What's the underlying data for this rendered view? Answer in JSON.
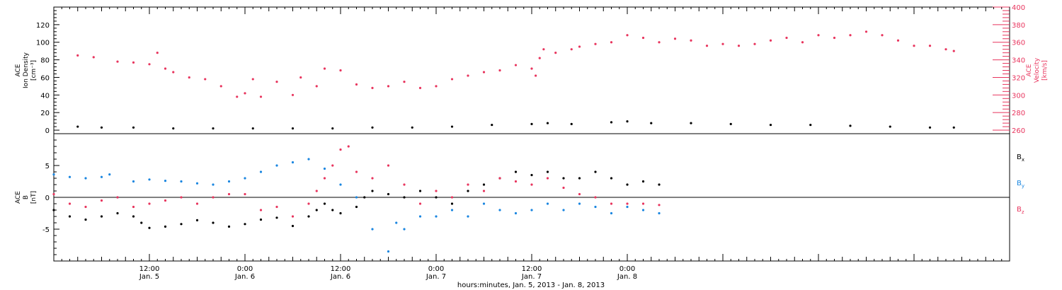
{
  "chart_data": [
    {
      "type": "scatter",
      "panel": "top",
      "left_axis": {
        "label_lines": [
          "ACE",
          "Ion Density",
          "[cm⁻³]"
        ],
        "ticks": [
          0,
          20,
          40,
          60,
          80,
          100,
          120
        ],
        "ylim": [
          -4,
          140
        ],
        "color": "#000000"
      },
      "right_axis": {
        "label_lines": [
          "ACE",
          "Velocity",
          "[km/s]"
        ],
        "ticks": [
          260,
          280,
          300,
          320,
          340,
          360,
          380,
          400
        ],
        "ylim": [
          256,
          400
        ],
        "color": "#e8355e"
      },
      "series": [
        {
          "axis": "right",
          "color": "#e8355e",
          "points": [
            [
              3,
              345
            ],
            [
              5,
              343
            ],
            [
              8,
              338
            ],
            [
              10,
              337
            ],
            [
              12,
              335
            ],
            [
              13,
              348
            ],
            [
              14,
              330
            ],
            [
              15,
              326
            ],
            [
              17,
              320
            ],
            [
              19,
              318
            ],
            [
              21,
              310
            ],
            [
              23,
              298
            ],
            [
              24,
              302
            ],
            [
              25,
              318
            ],
            [
              26,
              298
            ],
            [
              28,
              315
            ],
            [
              30,
              300
            ],
            [
              31,
              320
            ],
            [
              33,
              310
            ],
            [
              34,
              330
            ],
            [
              36,
              328
            ],
            [
              38,
              312
            ],
            [
              40,
              308
            ],
            [
              42,
              310
            ],
            [
              44,
              315
            ],
            [
              46,
              308
            ],
            [
              48,
              310
            ],
            [
              50,
              318
            ],
            [
              52,
              322
            ],
            [
              54,
              326
            ],
            [
              56,
              328
            ],
            [
              58,
              334
            ],
            [
              60,
              330
            ],
            [
              60.5,
              322
            ],
            [
              61,
              342
            ],
            [
              61.5,
              352
            ],
            [
              63,
              348
            ],
            [
              65,
              352
            ],
            [
              66,
              355
            ],
            [
              68,
              358
            ],
            [
              70,
              360
            ],
            [
              72,
              368
            ],
            [
              74,
              365
            ],
            [
              76,
              360
            ],
            [
              78,
              364
            ],
            [
              80,
              362
            ],
            [
              82,
              356
            ],
            [
              84,
              358
            ],
            [
              86,
              356
            ],
            [
              88,
              358
            ],
            [
              90,
              362
            ],
            [
              92,
              365
            ],
            [
              94,
              360
            ],
            [
              96,
              368
            ],
            [
              98,
              365
            ],
            [
              100,
              368
            ],
            [
              102,
              372
            ],
            [
              104,
              368
            ],
            [
              106,
              362
            ],
            [
              108,
              356
            ],
            [
              110,
              356
            ],
            [
              112,
              352
            ],
            [
              113,
              350
            ]
          ]
        },
        {
          "axis": "left",
          "color": "#000000",
          "points": [
            [
              3,
              4
            ],
            [
              6,
              3
            ],
            [
              10,
              3
            ],
            [
              15,
              2
            ],
            [
              20,
              2
            ],
            [
              25,
              2
            ],
            [
              30,
              2
            ],
            [
              35,
              2
            ],
            [
              40,
              3
            ],
            [
              45,
              3
            ],
            [
              50,
              4
            ],
            [
              55,
              6
            ],
            [
              60,
              7
            ],
            [
              62,
              8
            ],
            [
              65,
              7
            ],
            [
              70,
              9
            ],
            [
              72,
              10
            ],
            [
              75,
              8
            ],
            [
              80,
              8
            ],
            [
              85,
              7
            ],
            [
              90,
              6
            ],
            [
              95,
              6
            ],
            [
              100,
              5
            ],
            [
              105,
              4
            ],
            [
              110,
              3
            ],
            [
              113,
              3
            ]
          ]
        }
      ]
    },
    {
      "type": "scatter",
      "panel": "bottom",
      "left_axis": {
        "label_lines": [
          "ACE",
          "B",
          "[nT]"
        ],
        "ticks": [
          -5,
          0,
          5
        ],
        "ylim": [
          -10,
          10
        ],
        "color": "#000000"
      },
      "xlabel": "hours:minutes, Jan.  5, 2013 - Jan.  8, 2013",
      "xlim": [
        0,
        120
      ],
      "x_ticks": [
        {
          "x": 12,
          "time": "12:00",
          "date": "Jan. 5"
        },
        {
          "x": 24,
          "time": "0:00",
          "date": "Jan. 6"
        },
        {
          "x": 36,
          "time": "12:00",
          "date": "Jan. 6"
        },
        {
          "x": 48,
          "time": "0:00",
          "date": "Jan. 7"
        },
        {
          "x": 60,
          "time": "12:00",
          "date": "Jan. 7"
        },
        {
          "x": 72,
          "time": "0:00",
          "date": "Jan. 8"
        }
      ],
      "series": [
        {
          "name": "Bx",
          "label_main": "B",
          "label_sub": "x",
          "color": "#000000",
          "points": [
            [
              0,
              -2
            ],
            [
              2,
              -3
            ],
            [
              4,
              -3.5
            ],
            [
              6,
              -3
            ],
            [
              8,
              -2.5
            ],
            [
              10,
              -3
            ],
            [
              11,
              -4
            ],
            [
              12,
              -4.8
            ],
            [
              14,
              -4.6
            ],
            [
              16,
              -4.2
            ],
            [
              18,
              -3.6
            ],
            [
              20,
              -4.0
            ],
            [
              22,
              -4.6
            ],
            [
              24,
              -4.2
            ],
            [
              26,
              -3.5
            ],
            [
              28,
              -3.2
            ],
            [
              30,
              -4.5
            ],
            [
              32,
              -3.0
            ],
            [
              33,
              -2.0
            ],
            [
              34,
              -1.0
            ],
            [
              35,
              -2.0
            ],
            [
              36,
              -2.5
            ],
            [
              38,
              -1.5
            ],
            [
              39,
              0
            ],
            [
              40,
              1
            ],
            [
              42,
              0.5
            ],
            [
              44,
              0
            ],
            [
              46,
              1
            ],
            [
              48,
              0
            ],
            [
              50,
              -1
            ],
            [
              52,
              1
            ],
            [
              54,
              2
            ],
            [
              56,
              3
            ],
            [
              58,
              4
            ],
            [
              60,
              3.5
            ],
            [
              62,
              4
            ],
            [
              64,
              3
            ],
            [
              66,
              3
            ],
            [
              68,
              4
            ],
            [
              70,
              3
            ],
            [
              72,
              2
            ],
            [
              74,
              2.5
            ],
            [
              76,
              2
            ]
          ]
        },
        {
          "name": "By",
          "label_main": "B",
          "label_sub": "y",
          "color": "#1a86e0",
          "points": [
            [
              0,
              3.6
            ],
            [
              2,
              3.2
            ],
            [
              4,
              3.0
            ],
            [
              6,
              3.2
            ],
            [
              7,
              3.6
            ],
            [
              8,
              0
            ],
            [
              10,
              2.5
            ],
            [
              12,
              2.8
            ],
            [
              14,
              2.6
            ],
            [
              16,
              2.5
            ],
            [
              18,
              2.2
            ],
            [
              20,
              2.0
            ],
            [
              22,
              2.5
            ],
            [
              24,
              3.0
            ],
            [
              26,
              4.0
            ],
            [
              28,
              5.0
            ],
            [
              30,
              5.5
            ],
            [
              32,
              6.0
            ],
            [
              34,
              4.5
            ],
            [
              36,
              2.0
            ],
            [
              38,
              0
            ],
            [
              40,
              -5
            ],
            [
              42,
              -8.5
            ],
            [
              43,
              -4
            ],
            [
              44,
              -5
            ],
            [
              46,
              -3
            ],
            [
              48,
              -3
            ],
            [
              50,
              -2
            ],
            [
              52,
              -3
            ],
            [
              54,
              -1
            ],
            [
              56,
              -2
            ],
            [
              58,
              -2.5
            ],
            [
              60,
              -2.0
            ],
            [
              62,
              -1.0
            ],
            [
              64,
              -2.0
            ],
            [
              66,
              -1.0
            ],
            [
              68,
              -1.5
            ],
            [
              70,
              -2.5
            ],
            [
              72,
              -1.5
            ],
            [
              74,
              -2
            ],
            [
              76,
              -2.5
            ]
          ]
        },
        {
          "name": "Bz",
          "label_main": "B",
          "label_sub": "z",
          "color": "#e8355e",
          "points": [
            [
              0,
              0.5
            ],
            [
              2,
              -1
            ],
            [
              4,
              -1.5
            ],
            [
              6,
              -0.5
            ],
            [
              8,
              0
            ],
            [
              10,
              -1.5
            ],
            [
              12,
              -1.0
            ],
            [
              14,
              -0.5
            ],
            [
              16,
              0
            ],
            [
              18,
              -1
            ],
            [
              20,
              0
            ],
            [
              22,
              0.5
            ],
            [
              24,
              0.5
            ],
            [
              26,
              -2
            ],
            [
              28,
              -1.5
            ],
            [
              30,
              -3
            ],
            [
              32,
              -1
            ],
            [
              33,
              1
            ],
            [
              34,
              3
            ],
            [
              35,
              5
            ],
            [
              36,
              7.5
            ],
            [
              37,
              8
            ],
            [
              38,
              4
            ],
            [
              40,
              3
            ],
            [
              42,
              5
            ],
            [
              44,
              2
            ],
            [
              46,
              -1
            ],
            [
              48,
              1
            ],
            [
              50,
              0
            ],
            [
              52,
              2
            ],
            [
              54,
              1
            ],
            [
              56,
              3
            ],
            [
              58,
              2.5
            ],
            [
              60,
              2
            ],
            [
              62,
              3
            ],
            [
              64,
              1.5
            ],
            [
              66,
              0.5
            ],
            [
              68,
              0
            ],
            [
              70,
              -1
            ],
            [
              72,
              -1
            ],
            [
              74,
              -1
            ],
            [
              76,
              -1.2
            ]
          ]
        }
      ]
    }
  ]
}
